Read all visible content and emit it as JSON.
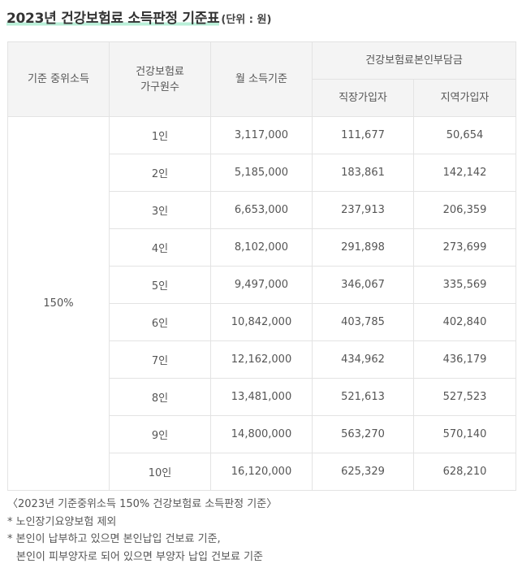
{
  "title": {
    "main": "2023년 건강보험료 소득판정 기준표",
    "unit": "(단위 : 원)"
  },
  "table": {
    "headers": {
      "median_income": "기준 중위소득",
      "household_line1": "건강보험료",
      "household_line2": "가구원수",
      "monthly_income": "월 소득기준",
      "premium_group": "건강보험료본인부담금",
      "employee": "직장가입자",
      "regional": "지역가입자"
    },
    "median_value": "150%",
    "rows": [
      {
        "members": "1인",
        "income": "3,117,000",
        "employee": "111,677",
        "regional": "50,654"
      },
      {
        "members": "2인",
        "income": "5,185,000",
        "employee": "183,861",
        "regional": "142,142"
      },
      {
        "members": "3인",
        "income": "6,653,000",
        "employee": "237,913",
        "regional": "206,359"
      },
      {
        "members": "4인",
        "income": "8,102,000",
        "employee": "291,898",
        "regional": "273,699"
      },
      {
        "members": "5인",
        "income": "9,497,000",
        "employee": "346,067",
        "regional": "335,569"
      },
      {
        "members": "6인",
        "income": "10,842,000",
        "employee": "403,785",
        "regional": "402,840"
      },
      {
        "members": "7인",
        "income": "12,162,000",
        "employee": "434,962",
        "regional": "436,179"
      },
      {
        "members": "8인",
        "income": "13,481,000",
        "employee": "521,613",
        "regional": "527,523"
      },
      {
        "members": "9인",
        "income": "14,800,000",
        "employee": "563,270",
        "regional": "570,140"
      },
      {
        "members": "10인",
        "income": "16,120,000",
        "employee": "625,329",
        "regional": "628,210"
      }
    ]
  },
  "notes": {
    "caption": "〈2023년 기준중위소득 150% 건강보험료 소득판정 기준〉",
    "note1": "* 노인장기요양보험 제외",
    "note2_line1": "* 본인이 납부하고 있으면 본인납입 건보료 기준,",
    "note2_line2": "본인이 피부양자로 되어 있으면 부양자 납입 건보료 기준"
  }
}
